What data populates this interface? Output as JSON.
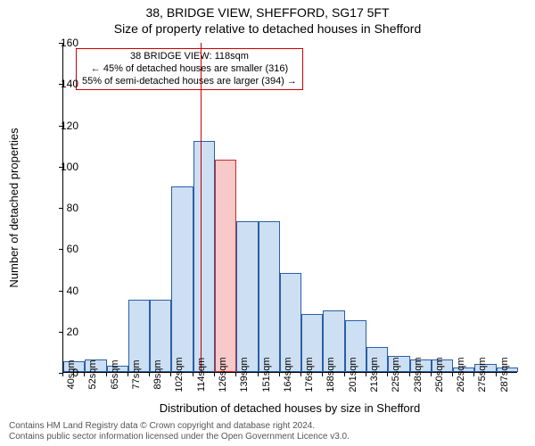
{
  "title": {
    "line1": "38, BRIDGE VIEW, SHEFFORD, SG17 5FT",
    "line2": "Size of property relative to detached houses in Shefford",
    "fontsize": 14,
    "color": "#000000"
  },
  "chart": {
    "type": "histogram",
    "ylabel": "Number of detached properties",
    "xlabel": "Distribution of detached houses by size in Shefford",
    "label_fontsize": 13,
    "ylim": [
      0,
      160
    ],
    "ytick_step": 20,
    "yticks": [
      0,
      20,
      40,
      60,
      80,
      100,
      120,
      140,
      160
    ],
    "background_color": "#ffffff",
    "axis_color": "#000000",
    "bar_fill": "#cddff2",
    "bar_stroke": "#2b5ea8",
    "highlight_fill": "#f7c9c9",
    "highlight_stroke": "#cc2b2b",
    "marker_color": "#cc0000",
    "bins": [
      {
        "label": "40sqm",
        "count": 5
      },
      {
        "label": "52sqm",
        "count": 6
      },
      {
        "label": "65sqm",
        "count": 3
      },
      {
        "label": "77sqm",
        "count": 35
      },
      {
        "label": "89sqm",
        "count": 35
      },
      {
        "label": "102sqm",
        "count": 90
      },
      {
        "label": "114sqm",
        "count": 112
      },
      {
        "label": "126sqm",
        "count": 103
      },
      {
        "label": "139sqm",
        "count": 73
      },
      {
        "label": "151sqm",
        "count": 73
      },
      {
        "label": "164sqm",
        "count": 48
      },
      {
        "label": "176sqm",
        "count": 28
      },
      {
        "label": "188sqm",
        "count": 30
      },
      {
        "label": "201sqm",
        "count": 25
      },
      {
        "label": "213sqm",
        "count": 12
      },
      {
        "label": "225sqm",
        "count": 8
      },
      {
        "label": "238sqm",
        "count": 6
      },
      {
        "label": "250sqm",
        "count": 6
      },
      {
        "label": "262sqm",
        "count": 2
      },
      {
        "label": "275sqm",
        "count": 4
      },
      {
        "label": "287sqm",
        "count": 2
      }
    ],
    "highlight_index": 7,
    "marker_sqm": 118,
    "xtick_fontsize": 11,
    "ytick_fontsize": 12
  },
  "annotation": {
    "line1": "38 BRIDGE VIEW: 118sqm",
    "line2": "← 45% of detached houses are smaller (316)",
    "line3": "55% of semi-detached houses are larger (394) →",
    "border_color": "#cc0000",
    "fontsize": 11
  },
  "footer": {
    "line1": "Contains HM Land Registry data © Crown copyright and database right 2024.",
    "line2": "Contains public sector information licensed under the Open Government Licence v3.0.",
    "fontsize": 10,
    "color": "#555555"
  }
}
